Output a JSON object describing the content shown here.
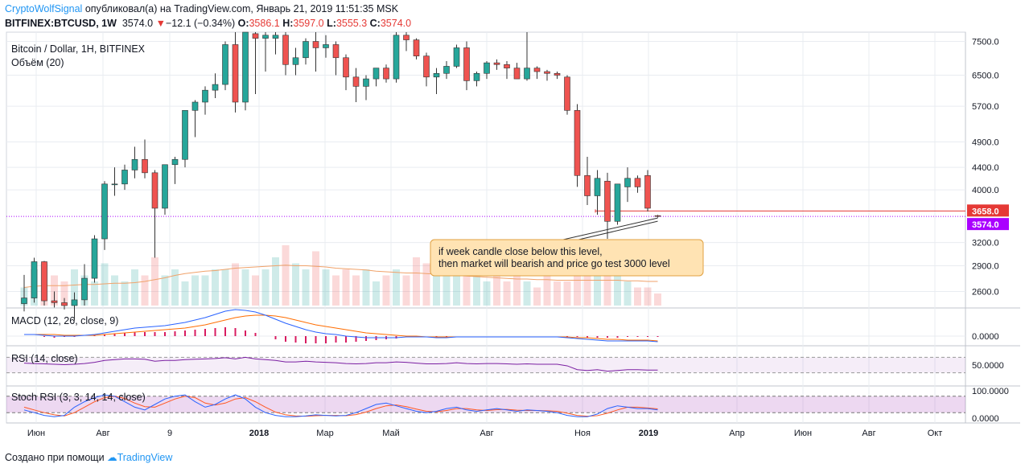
{
  "header": {
    "author": "CryptoWolfSignal",
    "published": "опубликовал(а) на TradingView.com, Январь 21, 2019 11:51:35 MSK",
    "symbol": "BITFINEX:BTCUSD, 1W",
    "price": "3574.0",
    "change_arrow": "▼",
    "change": "−12.1 (−0.34%)",
    "o_label": "O:",
    "o": "3586.1",
    "h_label": "H:",
    "h": "3597.0",
    "l_label": "L:",
    "l": "3555.3",
    "c_label": "C:",
    "c": "3574.0"
  },
  "footer": {
    "text": "Создано при помощи",
    "brand": "TradingView"
  },
  "colors": {
    "up": "#26a69a",
    "down": "#ef5350",
    "bg": "#ffffff",
    "grid": "#e9ecf1",
    "macd": "#2962ff",
    "signal": "#ff6d00",
    "rsi": "#7b1fa2",
    "stoch_k": "#2962ff",
    "stoch_d": "#ff5722",
    "price_tag": "#e53935",
    "last_tag": "#aa00ff"
  },
  "chart_data": [
    {
      "type": "candlestick",
      "legend": [
        "Bitcoin / Dollar, 1H, BITFINEX",
        "Объём (20)"
      ],
      "y_scale": "log",
      "y_ticks": [
        7500,
        6500,
        5700,
        4900,
        4400,
        4000,
        3200,
        2900,
        2600
      ],
      "y_tick_labels": [
        "7500.0",
        "6500.0",
        "5700.0",
        "4900.0",
        "4400.0",
        "4000.0",
        "3200.0",
        "2900.0",
        "2600.0"
      ],
      "ylim": [
        2450,
        7800
      ],
      "x_labels": [
        "Июн",
        "Авг",
        "9",
        "2018",
        "Мар",
        "Май",
        "Авг",
        "Ноя",
        "2019",
        "Апр",
        "Июн",
        "Авг",
        "Окт"
      ],
      "horizontal_level": 3658.0,
      "level_label": "3658.0",
      "last_price": 3574.0,
      "last_label": "3574.0",
      "candles": [
        {
          "o": 2470,
          "h": 2790,
          "l": 2390,
          "c": 2530
        },
        {
          "o": 2530,
          "h": 3000,
          "l": 2480,
          "c": 2950
        },
        {
          "o": 2950,
          "h": 2960,
          "l": 2450,
          "c": 2500
        },
        {
          "o": 2500,
          "h": 2600,
          "l": 2430,
          "c": 2480
        },
        {
          "o": 2480,
          "h": 2530,
          "l": 2410,
          "c": 2450
        },
        {
          "o": 2450,
          "h": 2590,
          "l": 2300,
          "c": 2510
        },
        {
          "o": 2510,
          "h": 2920,
          "l": 2450,
          "c": 2750
        },
        {
          "o": 2750,
          "h": 3300,
          "l": 2700,
          "c": 3250
        },
        {
          "o": 3250,
          "h": 4150,
          "l": 3100,
          "c": 4100
        },
        {
          "o": 4100,
          "h": 4400,
          "l": 3900,
          "c": 4100
        },
        {
          "o": 4100,
          "h": 4450,
          "l": 4000,
          "c": 4350
        },
        {
          "o": 4350,
          "h": 4800,
          "l": 4200,
          "c": 4550
        },
        {
          "o": 4550,
          "h": 4950,
          "l": 4200,
          "c": 4300
        },
        {
          "o": 4300,
          "h": 4350,
          "l": 3000,
          "c": 3700
        },
        {
          "o": 3700,
          "h": 4400,
          "l": 3600,
          "c": 4450
        },
        {
          "o": 4450,
          "h": 4600,
          "l": 4100,
          "c": 4550
        },
        {
          "o": 4550,
          "h": 5600,
          "l": 4400,
          "c": 5600
        },
        {
          "o": 5600,
          "h": 5850,
          "l": 5000,
          "c": 5800
        },
        {
          "o": 5800,
          "h": 6200,
          "l": 5500,
          "c": 6100
        },
        {
          "o": 6100,
          "h": 6550,
          "l": 5900,
          "c": 6250
        },
        {
          "o": 6250,
          "h": 7500,
          "l": 6100,
          "c": 7400
        },
        {
          "o": 7400,
          "h": 7800,
          "l": 5550,
          "c": 5800
        },
        {
          "o": 5800,
          "h": 7800,
          "l": 5600,
          "c": 7800
        },
        {
          "o": 7750,
          "h": 7800,
          "l": 6000,
          "c": 7600
        },
        {
          "o": 7600,
          "h": 7800,
          "l": 6600,
          "c": 7700
        },
        {
          "o": 7600,
          "h": 7800,
          "l": 7100,
          "c": 7700
        },
        {
          "o": 7700,
          "h": 7800,
          "l": 6500,
          "c": 6800
        },
        {
          "o": 6800,
          "h": 7300,
          "l": 6500,
          "c": 7000
        },
        {
          "o": 7000,
          "h": 7600,
          "l": 6800,
          "c": 7500
        },
        {
          "o": 7500,
          "h": 7800,
          "l": 6600,
          "c": 7300
        },
        {
          "o": 7300,
          "h": 7700,
          "l": 7000,
          "c": 7400
        },
        {
          "o": 7400,
          "h": 7500,
          "l": 6500,
          "c": 7000
        },
        {
          "o": 7000,
          "h": 7100,
          "l": 6100,
          "c": 6450
        },
        {
          "o": 6450,
          "h": 6700,
          "l": 5800,
          "c": 6200
        },
        {
          "o": 6200,
          "h": 6500,
          "l": 5850,
          "c": 6400
        },
        {
          "o": 6400,
          "h": 6700,
          "l": 6200,
          "c": 6700
        },
        {
          "o": 6700,
          "h": 6800,
          "l": 6300,
          "c": 6400
        },
        {
          "o": 6400,
          "h": 7800,
          "l": 6300,
          "c": 7700
        },
        {
          "o": 7700,
          "h": 7800,
          "l": 7200,
          "c": 7550
        },
        {
          "o": 7550,
          "h": 7600,
          "l": 6950,
          "c": 7050
        },
        {
          "o": 7050,
          "h": 7150,
          "l": 6200,
          "c": 6450
        },
        {
          "o": 6450,
          "h": 6700,
          "l": 6000,
          "c": 6550
        },
        {
          "o": 6550,
          "h": 6900,
          "l": 6400,
          "c": 6750
        },
        {
          "o": 6750,
          "h": 7400,
          "l": 6700,
          "c": 7300
        },
        {
          "o": 7300,
          "h": 7500,
          "l": 6100,
          "c": 6350
        },
        {
          "o": 6350,
          "h": 6600,
          "l": 6200,
          "c": 6550
        },
        {
          "o": 6550,
          "h": 6900,
          "l": 6400,
          "c": 6850
        },
        {
          "o": 6850,
          "h": 6950,
          "l": 6650,
          "c": 6800
        },
        {
          "o": 6800,
          "h": 6900,
          "l": 6400,
          "c": 6700
        },
        {
          "o": 6700,
          "h": 6850,
          "l": 6400,
          "c": 6400
        },
        {
          "o": 6400,
          "h": 7800,
          "l": 6350,
          "c": 6700
        },
        {
          "o": 6700,
          "h": 6750,
          "l": 6400,
          "c": 6600
        },
        {
          "o": 6600,
          "h": 6650,
          "l": 6350,
          "c": 6550
        },
        {
          "o": 6550,
          "h": 6600,
          "l": 6400,
          "c": 6500
        },
        {
          "o": 6450,
          "h": 6500,
          "l": 5500,
          "c": 5600
        },
        {
          "o": 5600,
          "h": 5750,
          "l": 4050,
          "c": 4250
        },
        {
          "o": 4250,
          "h": 4600,
          "l": 3750,
          "c": 3900
        },
        {
          "o": 3900,
          "h": 4350,
          "l": 3600,
          "c": 4200
        },
        {
          "o": 4150,
          "h": 4300,
          "l": 3250,
          "c": 3500
        },
        {
          "o": 3500,
          "h": 4100,
          "l": 3450,
          "c": 4100
        },
        {
          "o": 4050,
          "h": 4400,
          "l": 3800,
          "c": 4200
        },
        {
          "o": 4200,
          "h": 4250,
          "l": 3950,
          "c": 4050
        },
        {
          "o": 4250,
          "h": 4350,
          "l": 3650,
          "c": 3700
        },
        {
          "o": 3586.1,
          "h": 3597,
          "l": 3555.3,
          "c": 3574
        }
      ]
    },
    {
      "type": "bar",
      "name": "Объём (20)",
      "values": [
        0.3,
        0.6,
        0.7,
        0.5,
        0.4,
        0.6,
        0.5,
        0.4,
        0.7,
        0.5,
        0.4,
        0.6,
        0.5,
        0.8,
        0.5,
        0.6,
        0.4,
        0.5,
        0.5,
        0.6,
        0.6,
        0.7,
        0.6,
        0.5,
        0.6,
        0.8,
        1.0,
        0.7,
        0.6,
        0.9,
        0.6,
        0.5,
        0.6,
        0.5,
        0.6,
        0.4,
        0.5,
        0.6,
        0.5,
        0.8,
        0.7,
        0.6,
        0.5,
        0.6,
        0.7,
        0.6,
        0.4,
        0.5,
        0.4,
        0.5,
        0.4,
        0.3,
        0.5,
        0.4,
        0.4,
        0.5,
        0.6,
        0.5,
        0.6,
        0.5,
        0.4,
        0.3,
        0.3,
        0.2
      ],
      "ma": [
        0.3,
        0.32,
        0.33,
        0.33,
        0.33,
        0.34,
        0.35,
        0.35,
        0.36,
        0.37,
        0.37,
        0.38,
        0.4,
        0.43,
        0.46,
        0.5,
        0.53,
        0.55,
        0.57,
        0.58,
        0.6,
        0.62,
        0.63,
        0.64,
        0.65,
        0.66,
        0.67,
        0.66,
        0.66,
        0.65,
        0.64,
        0.62,
        0.61,
        0.6,
        0.59,
        0.57,
        0.56,
        0.55,
        0.54,
        0.54,
        0.53,
        0.52,
        0.51,
        0.5,
        0.49,
        0.48,
        0.47,
        0.46,
        0.45,
        0.44,
        0.44,
        0.43,
        0.43,
        0.42,
        0.42,
        0.42,
        0.42,
        0.42,
        0.42,
        0.42,
        0.41,
        0.41,
        0.4,
        0.4
      ]
    },
    {
      "type": "line",
      "name": "MACD (12, 26, close, 9)",
      "y_tick_labels": [
        "0.0000"
      ],
      "series": [
        {
          "values": [
            0.02,
            0.02,
            0.01,
            0.0,
            0.0,
            0.0,
            0.01,
            0.02,
            0.04,
            0.06,
            0.08,
            0.1,
            0.11,
            0.12,
            0.13,
            0.15,
            0.17,
            0.2,
            0.23,
            0.27,
            0.31,
            0.33,
            0.32,
            0.3,
            0.26,
            0.21,
            0.16,
            0.12,
            0.08,
            0.05,
            0.03,
            0.02,
            0.0,
            -0.01,
            -0.02,
            -0.02,
            -0.02,
            -0.02,
            -0.01,
            -0.01,
            -0.01,
            -0.02,
            -0.02,
            -0.01,
            -0.01,
            -0.01,
            -0.01,
            -0.01,
            -0.01,
            -0.01,
            -0.01,
            -0.01,
            -0.01,
            -0.01,
            -0.02,
            -0.03,
            -0.04,
            -0.05,
            -0.06,
            -0.06,
            -0.06,
            -0.06,
            -0.06,
            -0.07
          ]
        },
        {
          "values": [
            0.02,
            0.02,
            0.02,
            0.02,
            0.01,
            0.01,
            0.01,
            0.01,
            0.02,
            0.03,
            0.04,
            0.05,
            0.06,
            0.07,
            0.08,
            0.09,
            0.1,
            0.12,
            0.14,
            0.17,
            0.2,
            0.23,
            0.25,
            0.26,
            0.26,
            0.25,
            0.23,
            0.2,
            0.17,
            0.14,
            0.12,
            0.1,
            0.08,
            0.06,
            0.04,
            0.03,
            0.02,
            0.01,
            0.0,
            0.0,
            -0.01,
            -0.01,
            -0.01,
            -0.01,
            -0.01,
            -0.01,
            -0.01,
            -0.01,
            -0.01,
            -0.01,
            -0.01,
            -0.01,
            -0.01,
            -0.01,
            -0.01,
            -0.02,
            -0.02,
            -0.03,
            -0.04,
            -0.04,
            -0.05,
            -0.05,
            -0.05,
            -0.06
          ]
        }
      ]
    },
    {
      "type": "line",
      "name": "RSI (14, close)",
      "y_tick_labels": [
        "50.0000"
      ],
      "band": [
        30,
        70
      ],
      "values": [
        55,
        54,
        53,
        52,
        51,
        52,
        54,
        57,
        62,
        64,
        66,
        66,
        65,
        60,
        62,
        62,
        64,
        65,
        66,
        67,
        69,
        66,
        70,
        66,
        64,
        62,
        58,
        58,
        60,
        58,
        57,
        56,
        54,
        53,
        54,
        56,
        56,
        58,
        57,
        55,
        53,
        53,
        54,
        56,
        54,
        53,
        54,
        54,
        53,
        52,
        53,
        52,
        52,
        52,
        48,
        38,
        36,
        38,
        34,
        36,
        38,
        38,
        37,
        37
      ]
    },
    {
      "type": "line",
      "name": "Stoch RSI (3, 3, 14, 14, close)",
      "y_tick_labels": [
        "100.0000",
        "0.0000"
      ],
      "band": [
        20,
        80
      ],
      "series": [
        {
          "values": [
            30,
            20,
            10,
            5,
            10,
            40,
            60,
            75,
            85,
            80,
            60,
            40,
            30,
            50,
            70,
            80,
            85,
            60,
            40,
            50,
            70,
            85,
            70,
            40,
            20,
            10,
            5,
            5,
            8,
            12,
            10,
            8,
            10,
            20,
            35,
            50,
            55,
            45,
            35,
            25,
            20,
            25,
            35,
            40,
            30,
            25,
            30,
            35,
            30,
            25,
            30,
            28,
            25,
            20,
            10,
            5,
            5,
            15,
            35,
            45,
            40,
            35,
            35,
            30
          ]
        },
        {
          "values": [
            40,
            30,
            20,
            12,
            8,
            20,
            40,
            60,
            75,
            80,
            72,
            55,
            42,
            40,
            55,
            70,
            80,
            75,
            55,
            48,
            55,
            70,
            75,
            60,
            40,
            22,
            12,
            8,
            7,
            9,
            10,
            10,
            9,
            13,
            22,
            35,
            45,
            48,
            42,
            33,
            25,
            23,
            28,
            35,
            35,
            30,
            28,
            31,
            32,
            29,
            28,
            28,
            27,
            25,
            18,
            10,
            7,
            9,
            18,
            30,
            40,
            40,
            37,
            34
          ]
        }
      ]
    }
  ],
  "annotation": {
    "lines": [
      "if week candle close below this level,",
      "then market will bearish and price go test 3000 level"
    ],
    "x_index": 63
  }
}
